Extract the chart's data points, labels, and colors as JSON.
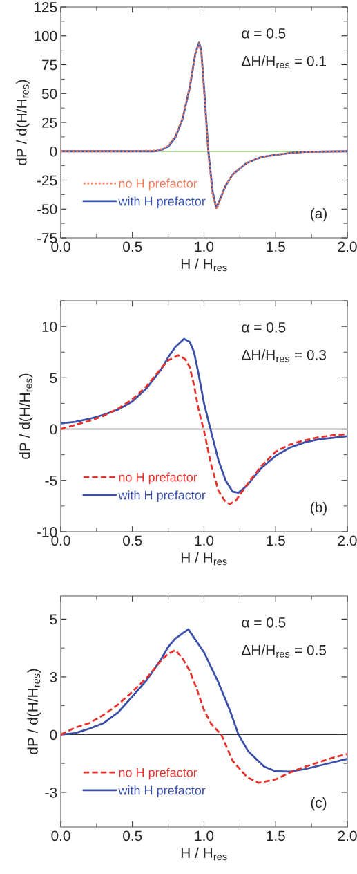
{
  "chart_data": [
    {
      "type": "line",
      "xlabel": "H / H$_{res}$",
      "ylabel": "dP / d(H/H$_{res}$)",
      "xlim": [
        0,
        2
      ],
      "ylim": [
        -75,
        125
      ],
      "xticks": [
        {
          "value": 0,
          "label": "0.0"
        },
        {
          "value": 0.5,
          "label": "0.5"
        },
        {
          "value": 1,
          "label": "1.0"
        },
        {
          "value": 1.5,
          "label": "1.5"
        },
        {
          "value": 2,
          "label": "2.0"
        }
      ],
      "yticks": [
        -75,
        -50,
        -25,
        0,
        25,
        50,
        75,
        100,
        125
      ],
      "legend": "bottom left",
      "annotations": [
        "α = 0.5",
        "ΔH/H$_{res}$ = 0.1",
        "(a)"
      ],
      "ref_lines": [
        {
          "axis": "y",
          "value": 0,
          "color": "#6aa84f"
        }
      ],
      "series": [
        {
          "name": "no H prefactor",
          "color": "#f07a5a",
          "line_style": "dotted",
          "x": [
            0,
            0.5,
            0.65,
            0.7,
            0.75,
            0.8,
            0.85,
            0.9,
            0.94,
            0.965,
            0.98,
            1.0,
            1.03,
            1.06,
            1.09,
            1.1,
            1.15,
            1.2,
            1.3,
            1.4,
            1.5,
            1.6,
            1.7,
            2.0
          ],
          "values": [
            0,
            0,
            0.5,
            1.5,
            5,
            13,
            29,
            56,
            85,
            93,
            86,
            52,
            -2,
            -38,
            -50,
            -46,
            -30,
            -20,
            -10,
            -5,
            -3,
            -1.5,
            -0.5,
            0
          ]
        },
        {
          "name": "with H prefactor",
          "color": "#3a56b0",
          "line_style": "solid",
          "x": [
            0,
            0.5,
            0.65,
            0.7,
            0.75,
            0.8,
            0.85,
            0.9,
            0.94,
            0.965,
            0.98,
            1.0,
            1.03,
            1.06,
            1.085,
            1.1,
            1.15,
            1.2,
            1.3,
            1.4,
            1.5,
            1.6,
            1.7,
            2.0
          ],
          "values": [
            0,
            0,
            0,
            1,
            4,
            12,
            28,
            55,
            85,
            94,
            88,
            55,
            0,
            -35,
            -49,
            -45,
            -30,
            -20,
            -10,
            -5,
            -3,
            -1.5,
            -0.5,
            0
          ]
        }
      ]
    },
    {
      "type": "line",
      "xlabel": "H / H$_{res}$",
      "ylabel": "dP / d(H/H$_{res}$)",
      "xlim": [
        0,
        2
      ],
      "ylim": [
        -10,
        12.5
      ],
      "xticks": [
        {
          "value": 0,
          "label": "0.0"
        },
        {
          "value": 0.5,
          "label": "0.5"
        },
        {
          "value": 1,
          "label": "1.0"
        },
        {
          "value": 1.5,
          "label": "1.5"
        },
        {
          "value": 2,
          "label": "2.0"
        }
      ],
      "yticks": [
        -10,
        -5,
        0,
        5,
        10
      ],
      "legend": "bottom left",
      "annotations": [
        "α = 0.5",
        "ΔH/H$_{res}$ = 0.3",
        "(b)"
      ],
      "ref_lines": [
        {
          "axis": "y",
          "value": 0,
          "color": "#555555"
        }
      ],
      "series": [
        {
          "name": "no H prefactor",
          "color": "#e8322c",
          "line_style": "dashed",
          "x": [
            0,
            0.1,
            0.2,
            0.3,
            0.4,
            0.5,
            0.6,
            0.7,
            0.75,
            0.82,
            0.87,
            0.9,
            0.93,
            0.96,
            1.0,
            1.05,
            1.1,
            1.15,
            1.18,
            1.22,
            1.3,
            1.4,
            1.5,
            1.6,
            1.7,
            1.8,
            1.9,
            2.0
          ],
          "values": [
            0,
            0.4,
            0.8,
            1.3,
            2.0,
            2.9,
            4.2,
            5.9,
            6.7,
            7.2,
            6.8,
            6.0,
            4.3,
            2.0,
            -0.2,
            -3.5,
            -6.0,
            -7.1,
            -7.3,
            -7.0,
            -5.4,
            -3.6,
            -2.2,
            -1.5,
            -1.1,
            -0.8,
            -0.6,
            -0.5
          ]
        },
        {
          "name": "with H prefactor",
          "color": "#3a4fa8",
          "line_style": "solid",
          "x": [
            0,
            0.1,
            0.2,
            0.3,
            0.4,
            0.5,
            0.6,
            0.7,
            0.75,
            0.8,
            0.86,
            0.9,
            0.93,
            0.96,
            1.0,
            1.05,
            1.1,
            1.15,
            1.2,
            1.24,
            1.3,
            1.4,
            1.5,
            1.6,
            1.7,
            1.8,
            1.9,
            2.0
          ],
          "values": [
            0.55,
            0.7,
            1.0,
            1.4,
            1.9,
            2.7,
            4.0,
            5.8,
            7.0,
            8.0,
            8.8,
            8.5,
            7.5,
            5.5,
            2.5,
            -0.3,
            -3.0,
            -5.0,
            -6.1,
            -6.2,
            -5.5,
            -3.8,
            -2.6,
            -1.8,
            -1.3,
            -1.0,
            -0.85,
            -0.7
          ]
        }
      ]
    },
    {
      "type": "line",
      "xlabel": "H / H$_{res}$",
      "ylabel": "dP / d(H/H$_{res}$)",
      "xlim": [
        0,
        2
      ],
      "ylim": [
        -4,
        6
      ],
      "xticks": [
        {
          "value": 0,
          "label": "0.0"
        },
        {
          "value": 0.5,
          "label": "0.5"
        },
        {
          "value": 1,
          "label": "1.0"
        },
        {
          "value": 1.5,
          "label": "1.5"
        },
        {
          "value": 2,
          "label": "2.0"
        }
      ],
      "yticks": [
        {
          "value": -2.5,
          "label": "-3"
        },
        0,
        {
          "value": 2.5,
          "label": "3"
        },
        5
      ],
      "legend": "bottom left",
      "annotations": [
        "α = 0.5",
        "ΔH/H$_{res}$ = 0.5",
        "(c)"
      ],
      "ref_lines": [
        {
          "axis": "y",
          "value": 0,
          "color": "#333333"
        }
      ],
      "series": [
        {
          "name": "no H prefactor",
          "color": "#e8322c",
          "line_style": "dashed",
          "x": [
            0,
            0.1,
            0.2,
            0.3,
            0.4,
            0.5,
            0.6,
            0.7,
            0.75,
            0.8,
            0.85,
            0.9,
            0.95,
            1.0,
            1.05,
            1.12,
            1.2,
            1.3,
            1.38,
            1.5,
            1.6,
            1.7,
            1.8,
            1.9,
            2.0
          ],
          "values": [
            0,
            0.3,
            0.5,
            0.86,
            1.3,
            1.86,
            2.46,
            3.2,
            3.5,
            3.66,
            3.3,
            2.76,
            1.96,
            1.06,
            0.46,
            0,
            -1.14,
            -1.84,
            -2.09,
            -1.94,
            -1.64,
            -1.4,
            -1.2,
            -1.0,
            -0.84
          ]
        },
        {
          "name": "with H prefactor",
          "color": "#3a4fa8",
          "line_style": "solid",
          "x": [
            0,
            0.1,
            0.2,
            0.3,
            0.4,
            0.5,
            0.6,
            0.7,
            0.75,
            0.8,
            0.89,
            1.0,
            1.1,
            1.18,
            1.24,
            1.31,
            1.42,
            1.5,
            1.6,
            1.7,
            1.8,
            1.9,
            2.0
          ],
          "values": [
            0,
            0.06,
            0.26,
            0.5,
            0.96,
            1.66,
            2.36,
            3.26,
            3.8,
            4.16,
            4.56,
            3.56,
            2.26,
            1.06,
            0,
            -0.74,
            -1.39,
            -1.59,
            -1.6,
            -1.5,
            -1.35,
            -1.2,
            -1.05
          ]
        }
      ]
    }
  ]
}
